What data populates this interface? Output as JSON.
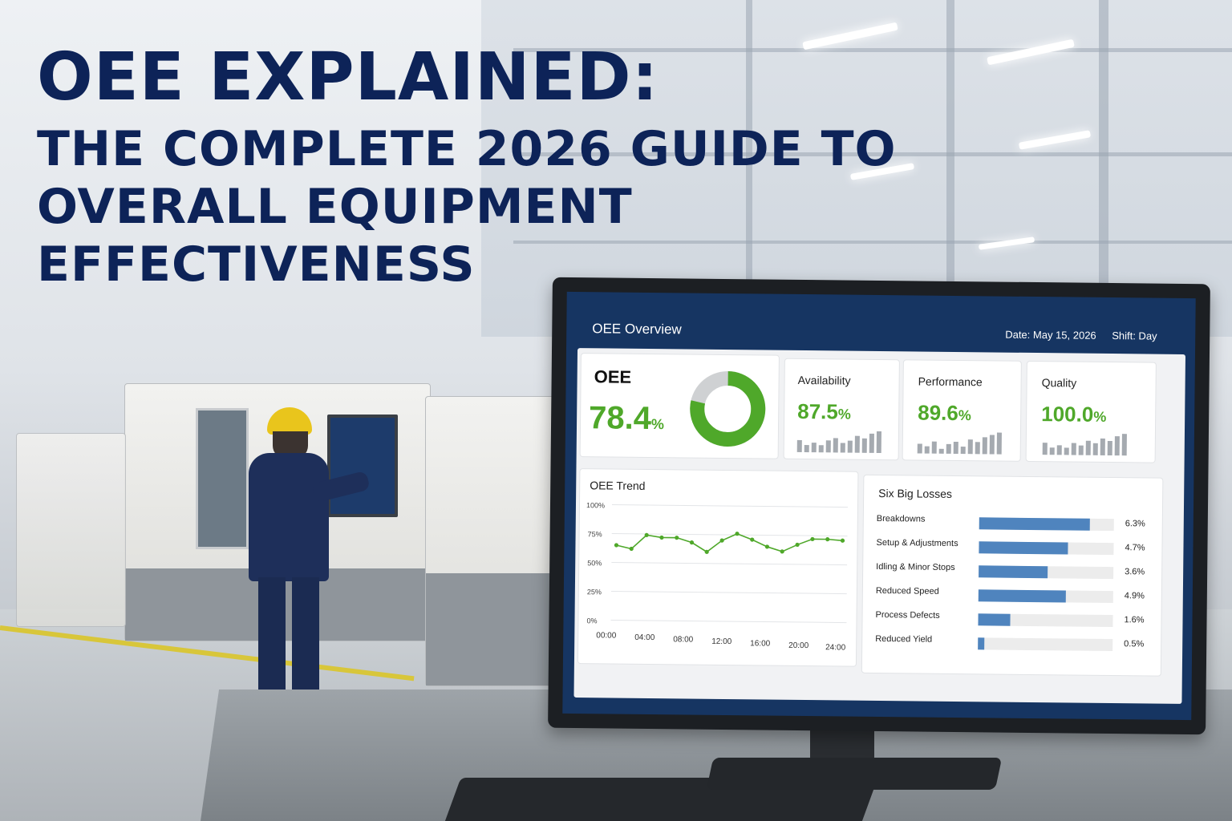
{
  "headline": {
    "line1": "OEE EXPLAINED:",
    "line2": "THE COMPLETE 2026 GUIDE TO",
    "line3": "OVERALL EQUIPMENT",
    "line4": "EFFECTIVENESS"
  },
  "dashboard": {
    "title": "OEE Overview",
    "date": "Date: May 15, 2026",
    "shift": "Shift: Day",
    "oee": {
      "label": "OEE",
      "value": "78.4",
      "unit": "%",
      "fraction": 0.784
    },
    "metrics": [
      {
        "label": "Availability",
        "value": "87.5",
        "unit": "%",
        "spark": [
          0.5,
          0.3,
          0.4,
          0.3,
          0.5,
          0.6,
          0.4,
          0.5,
          0.7,
          0.6,
          0.8,
          0.9
        ]
      },
      {
        "label": "Performance",
        "value": "89.6",
        "unit": "%",
        "spark": [
          0.4,
          0.3,
          0.5,
          0.2,
          0.4,
          0.5,
          0.3,
          0.6,
          0.5,
          0.7,
          0.8,
          0.9
        ]
      },
      {
        "label": "Quality",
        "value": "100.0",
        "unit": "%",
        "spark": [
          0.5,
          0.3,
          0.4,
          0.3,
          0.5,
          0.4,
          0.6,
          0.5,
          0.7,
          0.6,
          0.8,
          0.9
        ]
      }
    ],
    "colors": {
      "accent": "#4fa82a",
      "header": "#163562",
      "bar": "#4f84be",
      "donut_rest": "#cfd1d3"
    },
    "trend": {
      "title": "OEE Trend",
      "y_ticks": [
        "100%",
        "75%",
        "50%",
        "25%",
        "0%"
      ],
      "x_ticks": [
        "00:00",
        "04:00",
        "08:00",
        "12:00",
        "16:00",
        "20:00",
        "24:00"
      ],
      "values": [
        65,
        62,
        74,
        72,
        72,
        68,
        60,
        70,
        76,
        71,
        65,
        61,
        67,
        72,
        72,
        71
      ]
    },
    "losses": {
      "title": "Six Big Losses",
      "items": [
        {
          "label": "Breakdowns",
          "value": "6.3%",
          "fraction": 0.82
        },
        {
          "label": "Setup & Adjustments",
          "value": "4.7%",
          "fraction": 0.66
        },
        {
          "label": "Idling & Minor Stops",
          "value": "3.6%",
          "fraction": 0.51
        },
        {
          "label": "Reduced Speed",
          "value": "4.9%",
          "fraction": 0.65
        },
        {
          "label": "Process Defects",
          "value": "1.6%",
          "fraction": 0.24
        },
        {
          "label": "Reduced Yield",
          "value": "0.5%",
          "fraction": 0.05
        }
      ]
    }
  }
}
